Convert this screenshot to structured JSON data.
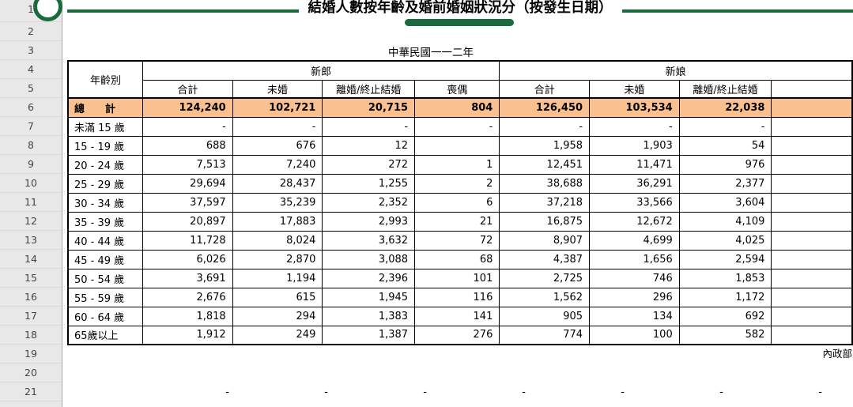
{
  "doc": {
    "title": "結婚人數按年齡及婚前婚姻狀況分（按發生日期）",
    "year_label": "中華民國一一二年",
    "source": "內政部"
  },
  "gutter": {
    "rows": [
      "1",
      "2",
      "3",
      "4",
      "5",
      "6",
      "7",
      "8",
      "9",
      "10",
      "11",
      "12",
      "13",
      "14",
      "15",
      "16",
      "17",
      "18",
      "19",
      "20",
      "21"
    ]
  },
  "table": {
    "corner_header": "年齡別",
    "groups": [
      {
        "label": "新郎",
        "columns": [
          "合計",
          "未婚",
          "離婚/終止結婚",
          "喪偶"
        ]
      },
      {
        "label": "新娘",
        "columns": [
          "合計",
          "未婚",
          "離婚/終止結婚"
        ]
      }
    ],
    "rows": [
      {
        "label": "總　　計",
        "is_total": true,
        "values": [
          "124,240",
          "102,721",
          "20,715",
          "804",
          "126,450",
          "103,534",
          "22,038"
        ]
      },
      {
        "label": "未滿 15 歲",
        "values": [
          "-",
          "-",
          "-",
          "-",
          "-",
          "-",
          "-"
        ]
      },
      {
        "label": "15 - 19 歲",
        "values": [
          "688",
          "676",
          "12",
          "",
          "1,958",
          "1,903",
          "54"
        ]
      },
      {
        "label": "20 - 24 歲",
        "values": [
          "7,513",
          "7,240",
          "272",
          "1",
          "12,451",
          "11,471",
          "976"
        ]
      },
      {
        "label": "25 - 29 歲",
        "values": [
          "29,694",
          "28,437",
          "1,255",
          "2",
          "38,688",
          "36,291",
          "2,377"
        ]
      },
      {
        "label": "30 - 34 歲",
        "values": [
          "37,597",
          "35,239",
          "2,352",
          "6",
          "37,218",
          "33,566",
          "3,604"
        ]
      },
      {
        "label": "35 - 39 歲",
        "values": [
          "20,897",
          "17,883",
          "2,993",
          "21",
          "16,875",
          "12,672",
          "4,109"
        ]
      },
      {
        "label": "40 - 44 歲",
        "values": [
          "11,728",
          "8,024",
          "3,632",
          "72",
          "8,907",
          "4,699",
          "4,025"
        ]
      },
      {
        "label": "45 - 49 歲",
        "values": [
          "6,026",
          "2,870",
          "3,088",
          "68",
          "4,387",
          "1,656",
          "2,594"
        ]
      },
      {
        "label": "50 - 54 歲",
        "values": [
          "3,691",
          "1,194",
          "2,396",
          "101",
          "2,725",
          "746",
          "1,853"
        ]
      },
      {
        "label": "55 - 59 歲",
        "values": [
          "2,676",
          "615",
          "1,945",
          "116",
          "1,562",
          "296",
          "1,172"
        ]
      },
      {
        "label": "60 - 64 歲",
        "values": [
          "1,818",
          "294",
          "1,383",
          "141",
          "905",
          "134",
          "692"
        ]
      },
      {
        "label": "65歲以上",
        "values": [
          "1,912",
          "249",
          "1,387",
          "276",
          "774",
          "100",
          "582"
        ]
      }
    ],
    "continuation_dashes": [
      "-",
      "-",
      "-",
      "-",
      "-",
      "-",
      "-"
    ]
  },
  "colors": {
    "accent_green": "#1b6a3d",
    "total_row_bg": "#fac090"
  }
}
